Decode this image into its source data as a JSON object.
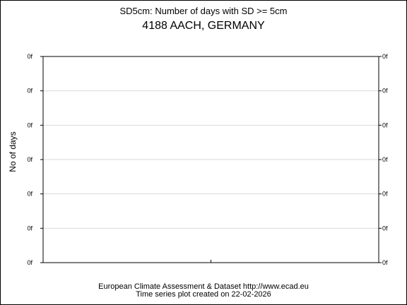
{
  "chart_data": {
    "type": "line",
    "title": "SD5cm: Number of days with SD >= 5cm",
    "subtitle": "4188 AACH, GERMANY",
    "ylabel": "No of days",
    "xlabel": "",
    "grid": true,
    "left_tick_labels": [
      "0f",
      "0f",
      "0f",
      "0f",
      "0f",
      "0f",
      "0f"
    ],
    "right_tick_labels": [
      "0f",
      "0f",
      "0f",
      "0f",
      "0f",
      "0f",
      "0f"
    ],
    "series": []
  },
  "footer": {
    "line1": "European Climate Assessment & Dataset  http://www.ecad.eu",
    "line2": "Time series plot created on 22-02-2026"
  }
}
